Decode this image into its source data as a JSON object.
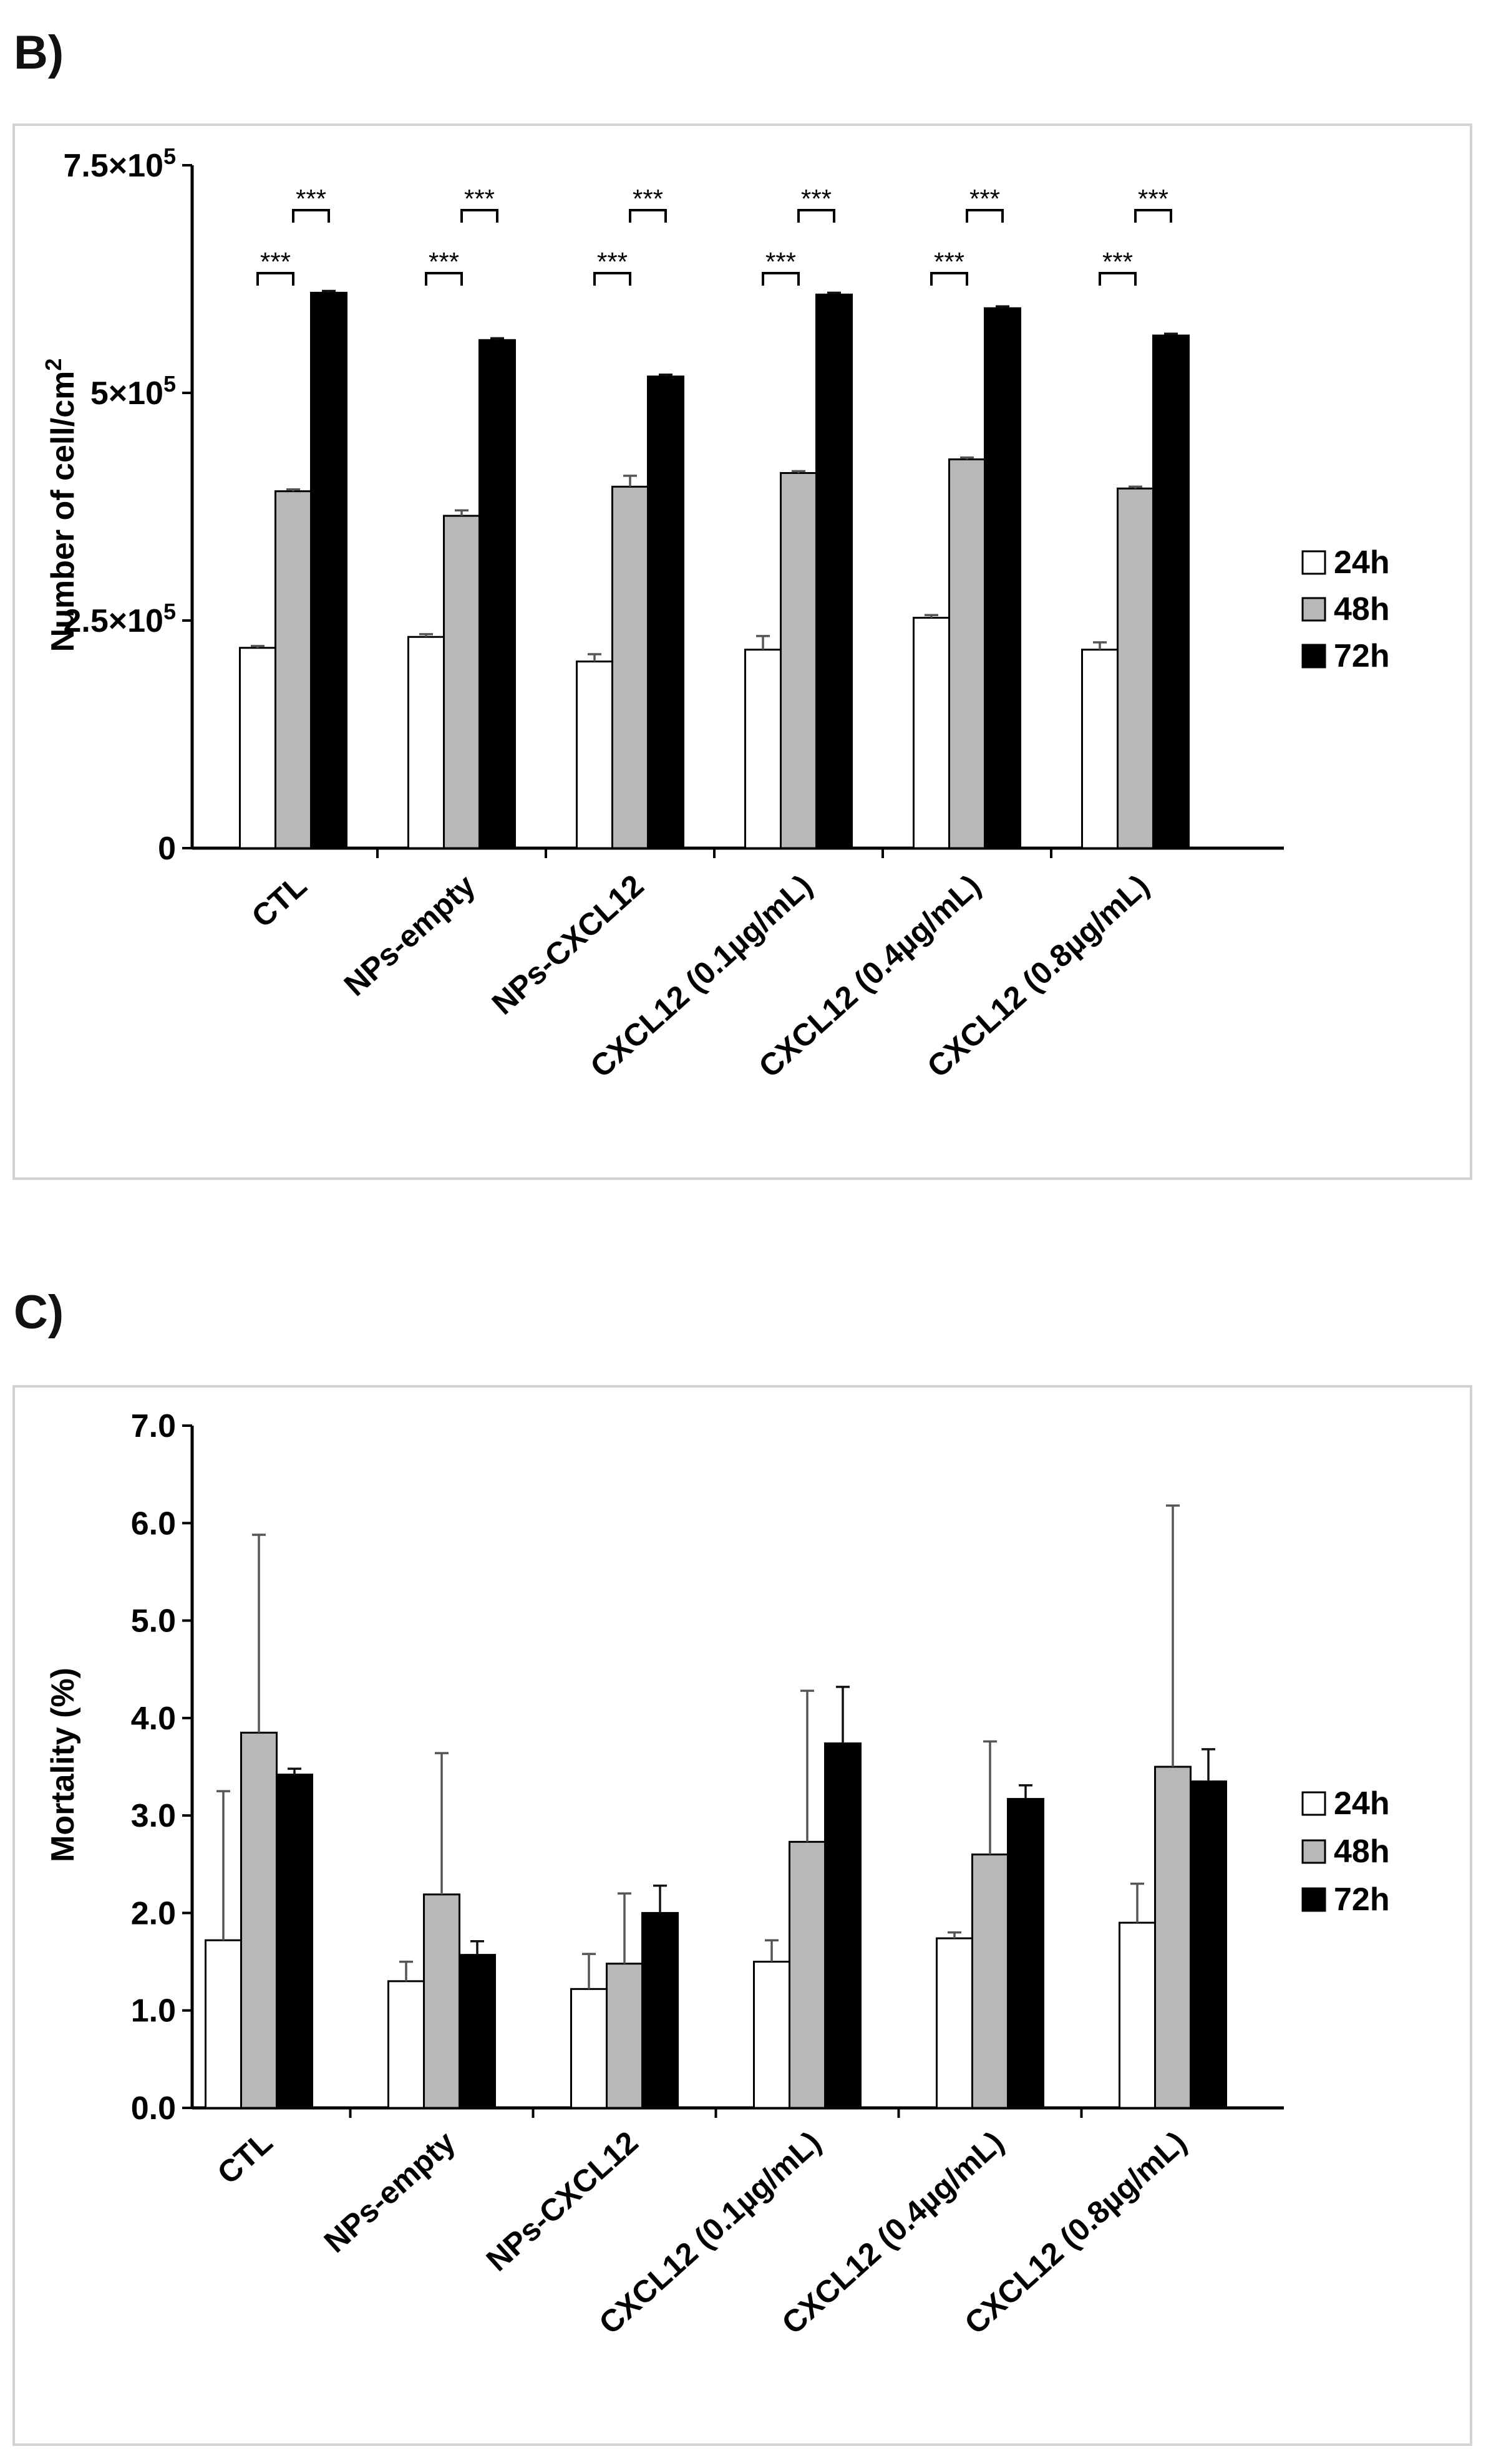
{
  "chart_data": [
    {
      "panel_label": "B)",
      "type": "bar",
      "ylabel": "Number of cell/cm",
      "ylabel_sup": "2",
      "ylim": [
        0,
        750000
      ],
      "yticks": [
        {
          "value": 0,
          "base": "0",
          "sup": ""
        },
        {
          "value": 250000,
          "base": "2.5×10",
          "sup": "5"
        },
        {
          "value": 500000,
          "base": "5×10",
          "sup": "5"
        },
        {
          "value": 750000,
          "base": "7.5×10",
          "sup": "5"
        }
      ],
      "categories": [
        "CTL",
        "NPs-empty",
        "NPs-CXCL12",
        "CXCL12 (0.1µg/mL)",
        "CXCL12 (0.4µg/mL)",
        "CXCL12 (0.8µg/mL)"
      ],
      "series": [
        {
          "name": "24h",
          "color": "#ffffff",
          "values": [
            220000,
            232000,
            205000,
            218000,
            253000,
            218000
          ],
          "errors": [
            2000,
            3000,
            8000,
            15000,
            3000,
            8000
          ]
        },
        {
          "name": "48h",
          "color": "#b8b8b8",
          "values": [
            392000,
            365000,
            397000,
            412000,
            427000,
            395000
          ],
          "errors": [
            2000,
            6000,
            12000,
            2000,
            2000,
            2000
          ]
        },
        {
          "name": "72h",
          "color": "#000000",
          "values": [
            610000,
            558000,
            518000,
            608000,
            593000,
            563000
          ],
          "errors": [
            2000,
            2000,
            2000,
            2000,
            2000,
            2000
          ]
        }
      ],
      "significance": "***",
      "significance_pairs": [
        [
          "24h",
          "48h"
        ],
        [
          "48h",
          "72h"
        ]
      ],
      "legend_position": "right"
    },
    {
      "panel_label": "C)",
      "type": "bar",
      "ylabel": "Mortality (%)",
      "ylim": [
        0,
        7
      ],
      "yticks": [
        {
          "value": 0,
          "base": "0.0",
          "sup": ""
        },
        {
          "value": 1,
          "base": "1.0",
          "sup": ""
        },
        {
          "value": 2,
          "base": "2.0",
          "sup": ""
        },
        {
          "value": 3,
          "base": "3.0",
          "sup": ""
        },
        {
          "value": 4,
          "base": "4.0",
          "sup": ""
        },
        {
          "value": 5,
          "base": "5.0",
          "sup": ""
        },
        {
          "value": 6,
          "base": "6.0",
          "sup": ""
        },
        {
          "value": 7,
          "base": "7.0",
          "sup": ""
        }
      ],
      "categories": [
        "CTL",
        "NPs-empty",
        "NPs-CXCL12",
        "CXCL12 (0.1µg/mL)",
        "CXCL12 (0.4µg/mL)",
        "CXCL12 (0.8µg/mL)"
      ],
      "series": [
        {
          "name": "24h",
          "color": "#ffffff",
          "values": [
            1.72,
            1.3,
            1.22,
            1.5,
            1.74,
            1.9
          ],
          "errors": [
            1.53,
            0.2,
            0.36,
            0.22,
            0.06,
            0.4
          ]
        },
        {
          "name": "48h",
          "color": "#b8b8b8",
          "values": [
            3.85,
            2.19,
            1.48,
            2.73,
            2.6,
            3.5
          ],
          "errors": [
            2.03,
            1.45,
            0.72,
            1.55,
            1.16,
            2.68
          ]
        },
        {
          "name": "72h",
          "color": "#000000",
          "values": [
            3.42,
            1.57,
            2.0,
            3.74,
            3.17,
            3.35
          ],
          "errors": [
            0.06,
            0.14,
            0.28,
            0.58,
            0.14,
            0.33
          ]
        }
      ],
      "legend_position": "right"
    }
  ]
}
